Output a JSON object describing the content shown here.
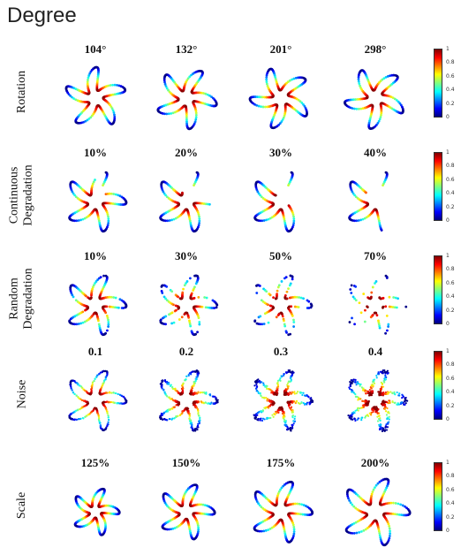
{
  "title": "Degree",
  "colorbar_ticks": [
    "1",
    "0.8",
    "0.6",
    "0.4",
    "0.2",
    "0"
  ],
  "rows": [
    {
      "label": "Rotation",
      "columns": [
        "104°",
        "132°",
        "201°",
        "298°"
      ]
    },
    {
      "label": "Continuous\nDegradation",
      "columns": [
        "10%",
        "20%",
        "30%",
        "40%"
      ]
    },
    {
      "label": "Random\nDegradation",
      "columns": [
        "10%",
        "30%",
        "50%",
        "70%"
      ]
    },
    {
      "label": "Noise",
      "columns": [
        "0.1",
        "0.2",
        "0.3",
        "0.4"
      ]
    },
    {
      "label": "Scale",
      "columns": [
        "125%",
        "150%",
        "175%",
        "200%"
      ]
    }
  ]
}
